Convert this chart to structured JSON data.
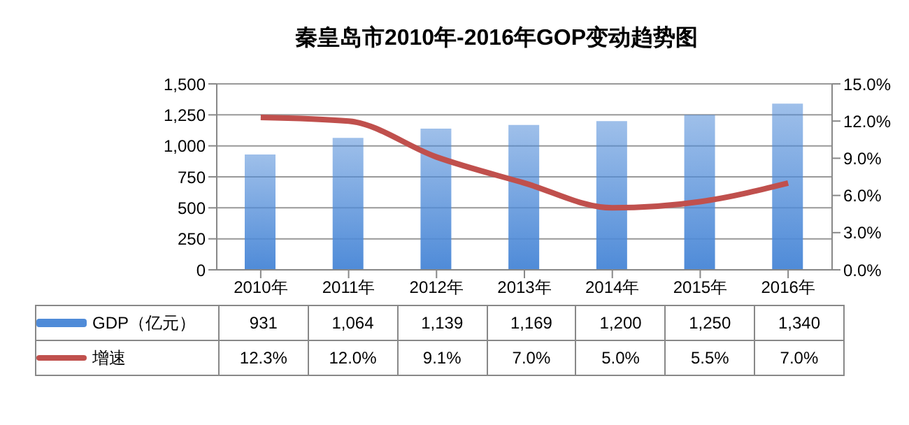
{
  "chart_data": {
    "type": "bar",
    "title": "秦皇岛市2010年-2016年GOP变动趋势图",
    "categories": [
      "2010年",
      "2011年",
      "2012年",
      "2013年",
      "2014年",
      "2015年",
      "2016年"
    ],
    "series": [
      {
        "name": "GDP（亿元）",
        "color": "#4f8bd8",
        "values": [
          931,
          1064,
          1139,
          1169,
          1200,
          1250,
          1340
        ],
        "value_labels": [
          "931",
          "1,064",
          "1,139",
          "1,169",
          "1,200",
          "1,250",
          "1,340"
        ]
      },
      {
        "name": "增速",
        "type": "line",
        "axis": "y2",
        "color": "#c0504d",
        "values": [
          12.3,
          12.0,
          9.1,
          7.0,
          5.0,
          5.5,
          7.0
        ],
        "value_labels": [
          "12.3%",
          "12.0%",
          "9.1%",
          "7.0%",
          "5.0%",
          "5.5%",
          "7.0%"
        ]
      }
    ],
    "ylim": [
      0,
      1500
    ],
    "yticks": [
      0,
      {
        "value": 250,
        "label": "250"
      },
      {
        "value": 500,
        "label": "500"
      },
      {
        "value": 750,
        "label": "750"
      },
      {
        "value": 1000,
        "label": "1,000"
      },
      {
        "value": 1250,
        "label": "1,250"
      },
      {
        "value": 1500,
        "label": "1,500"
      }
    ],
    "y2lim": [
      0,
      15
    ],
    "y2ticks": [
      {
        "value": 0,
        "label": "0.0%"
      },
      {
        "value": 3,
        "label": "3.0%"
      },
      {
        "value": 6,
        "label": "6.0%"
      },
      {
        "value": 9,
        "label": "9.0%"
      },
      {
        "value": 12,
        "label": "12.0%"
      },
      {
        "value": 15,
        "label": "15.0%"
      }
    ],
    "grid": "y",
    "legend": "bottom",
    "marker": "none",
    "line_style": "solid"
  }
}
